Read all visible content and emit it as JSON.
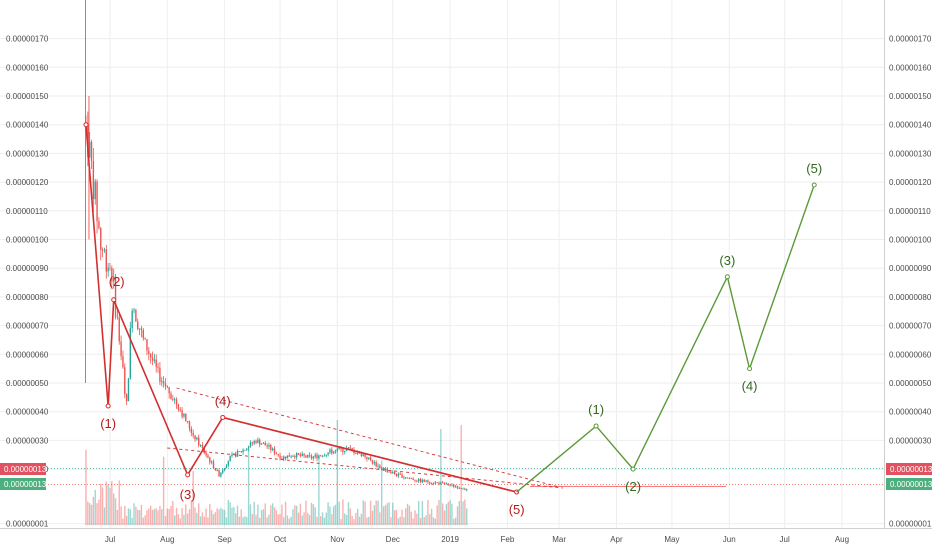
{
  "chart_data": {
    "type": "line",
    "ylim": [
      0.0,
      1.8e-06
    ],
    "y_ticks": [
      "0.00000170",
      "0.00000160",
      "0.00000150",
      "0.00000140",
      "0.00000130",
      "0.00000120",
      "0.00000110",
      "0.00000100",
      "0.00000090",
      "0.00000080",
      "0.00000070",
      "0.00000060",
      "0.00000050",
      "0.00000040",
      "0.00000030",
      "0.00000020",
      "0.00000001"
    ],
    "x_ticks": [
      "Jul",
      "Aug",
      "Sep",
      "Oct",
      "Nov",
      "Dec",
      "2019",
      "Feb",
      "Mar",
      "Apr",
      "May",
      "Jun",
      "Jul",
      "Aug"
    ],
    "last_price_red": "0.00000013",
    "last_price_green": "0.00000013",
    "wave_count_actual": [
      {
        "label": "(1)",
        "value": 4.2e-07
      },
      {
        "label": "(2)",
        "value": 7.9e-07
      },
      {
        "label": "(3)",
        "value": 1.8e-07
      },
      {
        "label": "(4)",
        "value": 3.8e-07
      },
      {
        "label": "(5)",
        "value": 1.2e-07
      }
    ],
    "wave_count_projection": [
      {
        "label": "(1)",
        "value": 3.5e-07
      },
      {
        "label": "(2)",
        "value": 2e-07
      },
      {
        "label": "(3)",
        "value": 8.7e-07
      },
      {
        "label": "(4)",
        "value": 5.5e-07
      },
      {
        "label": "(5)",
        "value": 1.19e-06
      }
    ],
    "colors": {
      "up": "#26a69a",
      "down": "#ef5350",
      "wave_red": "#d32f2f",
      "wave_green": "#5b9a36",
      "grid": "#eeeeee",
      "badge_red": "#e05260",
      "badge_green": "#4caf7d"
    }
  }
}
